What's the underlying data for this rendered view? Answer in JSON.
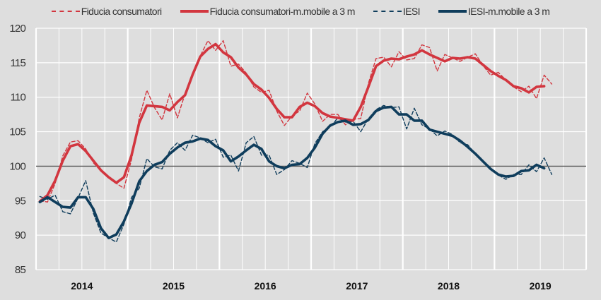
{
  "chart_data": {
    "type": "line",
    "title": "",
    "xlabel": "",
    "ylabel": "",
    "ylim": [
      85,
      120
    ],
    "yticks": [
      85,
      90,
      95,
      100,
      105,
      110,
      115,
      120
    ],
    "xtick_labels": [
      "2014",
      "2015",
      "2016",
      "2017",
      "2018",
      "2019"
    ],
    "x_range": [
      "2014-01",
      "2019-12"
    ],
    "reference_line": 100,
    "grid": true,
    "legend_placement": "top",
    "x": [
      "2014-01",
      "2014-02",
      "2014-03",
      "2014-04",
      "2014-05",
      "2014-06",
      "2014-07",
      "2014-08",
      "2014-09",
      "2014-10",
      "2014-11",
      "2014-12",
      "2015-01",
      "2015-02",
      "2015-03",
      "2015-04",
      "2015-05",
      "2015-06",
      "2015-07",
      "2015-08",
      "2015-09",
      "2015-10",
      "2015-11",
      "2015-12",
      "2016-01",
      "2016-02",
      "2016-03",
      "2016-04",
      "2016-05",
      "2016-06",
      "2016-07",
      "2016-08",
      "2016-09",
      "2016-10",
      "2016-11",
      "2016-12",
      "2017-01",
      "2017-02",
      "2017-03",
      "2017-04",
      "2017-05",
      "2017-06",
      "2017-07",
      "2017-08",
      "2017-09",
      "2017-10",
      "2017-11",
      "2017-12",
      "2018-01",
      "2018-02",
      "2018-03",
      "2018-04",
      "2018-05",
      "2018-06",
      "2018-07",
      "2018-08",
      "2018-09",
      "2018-10",
      "2018-11",
      "2018-12",
      "2019-01",
      "2019-02",
      "2019-03",
      "2019-04",
      "2019-05",
      "2019-06",
      "2019-07",
      "2019-08"
    ],
    "series": [
      {
        "name": "Fiducia consumatori",
        "style": "dashed",
        "color": "#d2363f",
        "values": [
          95,
          94.8,
          97.5,
          101.5,
          103.5,
          103.7,
          102.5,
          100.5,
          99.3,
          98.5,
          97.5,
          96.8,
          101,
          107,
          111,
          108.5,
          106.7,
          110.5,
          107,
          110.5,
          113.5,
          116,
          118.2,
          116.8,
          118.2,
          114.5,
          114.8,
          113.5,
          111.5,
          110.7,
          111,
          108,
          105.9,
          107.3,
          108,
          110.6,
          109,
          106.5,
          107.5,
          107.5,
          106,
          106.8,
          106.9,
          112,
          115.6,
          115.8,
          114.4,
          116.6,
          115.4,
          115.6,
          117.6,
          117.2,
          113.8,
          116.2,
          115.7,
          115.2,
          115.8,
          116.3,
          114.6,
          113.2,
          113.6,
          112.5,
          111.5,
          110.8,
          111.6,
          109.8,
          113.2,
          111.9
        ]
      },
      {
        "name": "Fiducia consumatori-m.mobile a 3 m",
        "style": "solid",
        "color": "#d2363f",
        "values": [
          94.9,
          95.8,
          97.9,
          100.8,
          102.9,
          103.2,
          102.2,
          100.8,
          99.4,
          98.4,
          97.6,
          98.4,
          101.6,
          106.3,
          108.8,
          108.7,
          108.6,
          108.1,
          109.3,
          110.3,
          113.3,
          115.9,
          117.0,
          117.7,
          116.5,
          115.8,
          114.3,
          113.3,
          111.9,
          111.1,
          109.9,
          108.3,
          107.1,
          107.1,
          108.6,
          109.2,
          108.7,
          107.7,
          107.2,
          107.0,
          106.8,
          106.6,
          108.6,
          111.5,
          114.5,
          115.3,
          115.6,
          115.5,
          115.9,
          116.2,
          116.8,
          116.2,
          115.7,
          115.2,
          115.7,
          115.6,
          115.8,
          115.6,
          114.7,
          113.8,
          113.1,
          112.5,
          111.6,
          111.3,
          110.7,
          111.5,
          111.6,
          null
        ]
      },
      {
        "name": "IESI",
        "style": "dashed",
        "color": "#0f3d5c",
        "values": [
          95.6,
          95.2,
          95.8,
          93.4,
          93.1,
          95.4,
          97.9,
          93.2,
          90.3,
          89.6,
          89,
          91.6,
          95.5,
          96.8,
          101.1,
          99.9,
          99.6,
          102.3,
          103.4,
          102.3,
          104.5,
          104.1,
          103.4,
          103.9,
          101.3,
          101.6,
          99.3,
          103.4,
          104.3,
          101.6,
          101.6,
          98.8,
          99.5,
          100.8,
          100.4,
          99.8,
          103.3,
          105,
          105.7,
          107,
          106.4,
          106.5,
          105,
          106.9,
          108.2,
          108.8,
          108.5,
          108.6,
          105.4,
          108.4,
          106,
          105.4,
          104.4,
          105.1,
          104.6,
          103.4,
          103.1,
          101.8,
          100.6,
          99.6,
          98.7,
          98.1,
          98.8,
          98.8,
          100.2,
          99.2,
          101.2,
          98.8
        ]
      },
      {
        "name": "IESI-m.mobile a 3 m",
        "style": "solid",
        "color": "#0f3d5c",
        "values": [
          94.8,
          95.5,
          94.8,
          94.1,
          94.0,
          95.5,
          95.5,
          93.8,
          91.0,
          89.6,
          90.1,
          92.0,
          94.6,
          97.8,
          99.3,
          100.2,
          100.6,
          101.8,
          102.7,
          103.4,
          103.6,
          104.0,
          103.8,
          102.9,
          102.3,
          100.7,
          101.4,
          102.3,
          103.1,
          102.5,
          100.7,
          100.0,
          99.7,
          100.2,
          100.3,
          101.2,
          102.7,
          104.7,
          105.9,
          106.4,
          106.6,
          106.0,
          106.1,
          106.7,
          108.0,
          108.5,
          108.6,
          107.5,
          107.5,
          106.6,
          106.6,
          105.3,
          105.0,
          104.7,
          104.4,
          103.7,
          102.8,
          101.8,
          100.7,
          99.6,
          98.8,
          98.5,
          98.6,
          99.3,
          99.4,
          100.2,
          99.7,
          null
        ]
      }
    ]
  },
  "colors": {
    "background": "#dedede",
    "grid": "#ffffff",
    "reference": "#555555"
  }
}
